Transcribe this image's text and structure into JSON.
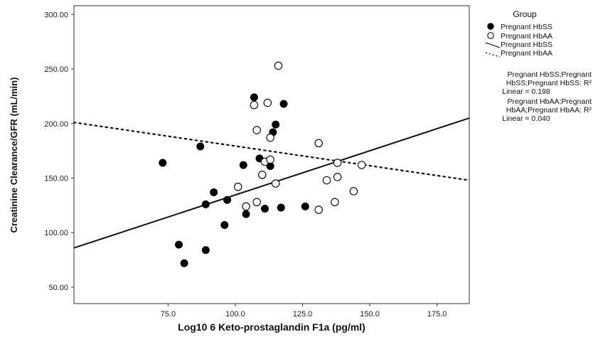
{
  "chart_data": {
    "type": "scatter",
    "xlabel": "Log10 6 Keto-prostaglandin F1a (pg/ml)",
    "ylabel": "Creatinine Clearance/GFR (mL/min)",
    "xlim": [
      40,
      187
    ],
    "ylim": [
      35,
      308
    ],
    "xticks": [
      75,
      100,
      125,
      150,
      175
    ],
    "xtick_labels": [
      "75.0",
      "100.0",
      "125.0",
      "150.0",
      "175.0"
    ],
    "yticks": [
      50,
      100,
      150,
      200,
      250,
      300
    ],
    "ytick_labels": [
      "50.00",
      "100.00",
      "150.00",
      "200.00",
      "250.00",
      "300.00"
    ],
    "grid": false,
    "legend": {
      "title": "Group",
      "placement": "right",
      "entries": [
        {
          "label": "Pregnant HbSS",
          "marker": "filled-circle"
        },
        {
          "label": "Pregnant HbAA",
          "marker": "open-circle"
        },
        {
          "label": "Pregnant HbSS",
          "marker": "solid-line"
        },
        {
          "label": "Pregnant HbAA",
          "marker": "dotted-line"
        }
      ]
    },
    "series": [
      {
        "name": "Pregnant HbSS",
        "marker": "filled",
        "points": [
          [
            73,
            164
          ],
          [
            79,
            89
          ],
          [
            81,
            72
          ],
          [
            87,
            179
          ],
          [
            89,
            84
          ],
          [
            89,
            126
          ],
          [
            92,
            137
          ],
          [
            96,
            107
          ],
          [
            97,
            130
          ],
          [
            103,
            162
          ],
          [
            104,
            117
          ],
          [
            107,
            224
          ],
          [
            109,
            168
          ],
          [
            111,
            122
          ],
          [
            113,
            161
          ],
          [
            114,
            192
          ],
          [
            115,
            199
          ],
          [
            117,
            123
          ],
          [
            118,
            218
          ],
          [
            126,
            124
          ]
        ]
      },
      {
        "name": "Pregnant HbAA",
        "marker": "open",
        "points": [
          [
            101,
            142
          ],
          [
            104,
            124
          ],
          [
            107,
            217
          ],
          [
            108,
            128
          ],
          [
            108,
            194
          ],
          [
            110,
            153
          ],
          [
            111,
            165
          ],
          [
            112,
            219
          ],
          [
            113,
            167
          ],
          [
            113,
            187
          ],
          [
            115,
            145
          ],
          [
            116,
            253
          ],
          [
            131,
            121
          ],
          [
            131,
            182
          ],
          [
            134,
            148
          ],
          [
            137,
            128
          ],
          [
            138,
            164
          ],
          [
            138,
            151
          ],
          [
            144,
            138
          ],
          [
            147,
            162
          ]
        ]
      }
    ],
    "fit_lines": [
      {
        "name": "Pregnant HbSS",
        "style": "solid",
        "x": [
          40,
          187
        ],
        "y": [
          86,
          205
        ]
      },
      {
        "name": "Pregnant HbAA",
        "style": "dotted",
        "x": [
          40,
          187
        ],
        "y": [
          201,
          148
        ]
      }
    ],
    "annotations": [
      {
        "series": "Pregnant HbSS",
        "lines": [
          "Pregnant HbSS;Pregnant",
          "HbSS;Pregnant HbSS: R²",
          "Linear = 0.198"
        ]
      },
      {
        "series": "Pregnant HbAA",
        "lines": [
          "Pregnant HbAA;Pregnant",
          "HbAA;Pregnant HbAA: R²",
          "Linear = 0.040"
        ]
      }
    ],
    "colors": {
      "hbss": "#000000",
      "hbaa_fill": "#ffffff",
      "axis": "#333333"
    }
  }
}
